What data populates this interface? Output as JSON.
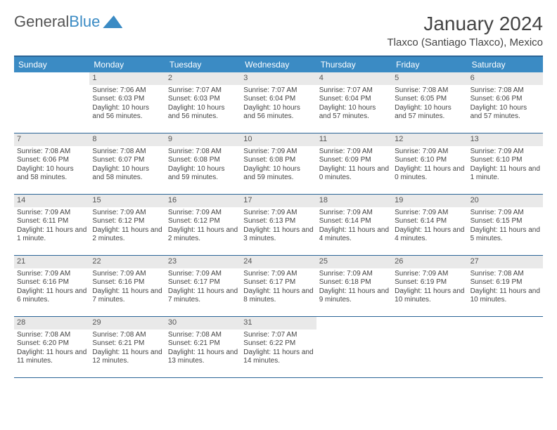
{
  "brand": {
    "part1": "General",
    "part2": "Blue"
  },
  "title": "January 2024",
  "location": "Tlaxco (Santiago Tlaxco), Mexico",
  "colors": {
    "header_bg": "#3b8bc4",
    "border": "#2a6496",
    "daynum_bg": "#e9e9e9",
    "text": "#444444",
    "white": "#ffffff"
  },
  "dow": [
    "Sunday",
    "Monday",
    "Tuesday",
    "Wednesday",
    "Thursday",
    "Friday",
    "Saturday"
  ],
  "weeks": [
    [
      null,
      {
        "n": "1",
        "sr": "Sunrise: 7:06 AM",
        "ss": "Sunset: 6:03 PM",
        "dl": "Daylight: 10 hours and 56 minutes."
      },
      {
        "n": "2",
        "sr": "Sunrise: 7:07 AM",
        "ss": "Sunset: 6:03 PM",
        "dl": "Daylight: 10 hours and 56 minutes."
      },
      {
        "n": "3",
        "sr": "Sunrise: 7:07 AM",
        "ss": "Sunset: 6:04 PM",
        "dl": "Daylight: 10 hours and 56 minutes."
      },
      {
        "n": "4",
        "sr": "Sunrise: 7:07 AM",
        "ss": "Sunset: 6:04 PM",
        "dl": "Daylight: 10 hours and 57 minutes."
      },
      {
        "n": "5",
        "sr": "Sunrise: 7:08 AM",
        "ss": "Sunset: 6:05 PM",
        "dl": "Daylight: 10 hours and 57 minutes."
      },
      {
        "n": "6",
        "sr": "Sunrise: 7:08 AM",
        "ss": "Sunset: 6:06 PM",
        "dl": "Daylight: 10 hours and 57 minutes."
      }
    ],
    [
      {
        "n": "7",
        "sr": "Sunrise: 7:08 AM",
        "ss": "Sunset: 6:06 PM",
        "dl": "Daylight: 10 hours and 58 minutes."
      },
      {
        "n": "8",
        "sr": "Sunrise: 7:08 AM",
        "ss": "Sunset: 6:07 PM",
        "dl": "Daylight: 10 hours and 58 minutes."
      },
      {
        "n": "9",
        "sr": "Sunrise: 7:08 AM",
        "ss": "Sunset: 6:08 PM",
        "dl": "Daylight: 10 hours and 59 minutes."
      },
      {
        "n": "10",
        "sr": "Sunrise: 7:09 AM",
        "ss": "Sunset: 6:08 PM",
        "dl": "Daylight: 10 hours and 59 minutes."
      },
      {
        "n": "11",
        "sr": "Sunrise: 7:09 AM",
        "ss": "Sunset: 6:09 PM",
        "dl": "Daylight: 11 hours and 0 minutes."
      },
      {
        "n": "12",
        "sr": "Sunrise: 7:09 AM",
        "ss": "Sunset: 6:10 PM",
        "dl": "Daylight: 11 hours and 0 minutes."
      },
      {
        "n": "13",
        "sr": "Sunrise: 7:09 AM",
        "ss": "Sunset: 6:10 PM",
        "dl": "Daylight: 11 hours and 1 minute."
      }
    ],
    [
      {
        "n": "14",
        "sr": "Sunrise: 7:09 AM",
        "ss": "Sunset: 6:11 PM",
        "dl": "Daylight: 11 hours and 1 minute."
      },
      {
        "n": "15",
        "sr": "Sunrise: 7:09 AM",
        "ss": "Sunset: 6:12 PM",
        "dl": "Daylight: 11 hours and 2 minutes."
      },
      {
        "n": "16",
        "sr": "Sunrise: 7:09 AM",
        "ss": "Sunset: 6:12 PM",
        "dl": "Daylight: 11 hours and 2 minutes."
      },
      {
        "n": "17",
        "sr": "Sunrise: 7:09 AM",
        "ss": "Sunset: 6:13 PM",
        "dl": "Daylight: 11 hours and 3 minutes."
      },
      {
        "n": "18",
        "sr": "Sunrise: 7:09 AM",
        "ss": "Sunset: 6:14 PM",
        "dl": "Daylight: 11 hours and 4 minutes."
      },
      {
        "n": "19",
        "sr": "Sunrise: 7:09 AM",
        "ss": "Sunset: 6:14 PM",
        "dl": "Daylight: 11 hours and 4 minutes."
      },
      {
        "n": "20",
        "sr": "Sunrise: 7:09 AM",
        "ss": "Sunset: 6:15 PM",
        "dl": "Daylight: 11 hours and 5 minutes."
      }
    ],
    [
      {
        "n": "21",
        "sr": "Sunrise: 7:09 AM",
        "ss": "Sunset: 6:16 PM",
        "dl": "Daylight: 11 hours and 6 minutes."
      },
      {
        "n": "22",
        "sr": "Sunrise: 7:09 AM",
        "ss": "Sunset: 6:16 PM",
        "dl": "Daylight: 11 hours and 7 minutes."
      },
      {
        "n": "23",
        "sr": "Sunrise: 7:09 AM",
        "ss": "Sunset: 6:17 PM",
        "dl": "Daylight: 11 hours and 7 minutes."
      },
      {
        "n": "24",
        "sr": "Sunrise: 7:09 AM",
        "ss": "Sunset: 6:17 PM",
        "dl": "Daylight: 11 hours and 8 minutes."
      },
      {
        "n": "25",
        "sr": "Sunrise: 7:09 AM",
        "ss": "Sunset: 6:18 PM",
        "dl": "Daylight: 11 hours and 9 minutes."
      },
      {
        "n": "26",
        "sr": "Sunrise: 7:09 AM",
        "ss": "Sunset: 6:19 PM",
        "dl": "Daylight: 11 hours and 10 minutes."
      },
      {
        "n": "27",
        "sr": "Sunrise: 7:08 AM",
        "ss": "Sunset: 6:19 PM",
        "dl": "Daylight: 11 hours and 10 minutes."
      }
    ],
    [
      {
        "n": "28",
        "sr": "Sunrise: 7:08 AM",
        "ss": "Sunset: 6:20 PM",
        "dl": "Daylight: 11 hours and 11 minutes."
      },
      {
        "n": "29",
        "sr": "Sunrise: 7:08 AM",
        "ss": "Sunset: 6:21 PM",
        "dl": "Daylight: 11 hours and 12 minutes."
      },
      {
        "n": "30",
        "sr": "Sunrise: 7:08 AM",
        "ss": "Sunset: 6:21 PM",
        "dl": "Daylight: 11 hours and 13 minutes."
      },
      {
        "n": "31",
        "sr": "Sunrise: 7:07 AM",
        "ss": "Sunset: 6:22 PM",
        "dl": "Daylight: 11 hours and 14 minutes."
      },
      null,
      null,
      null
    ]
  ]
}
